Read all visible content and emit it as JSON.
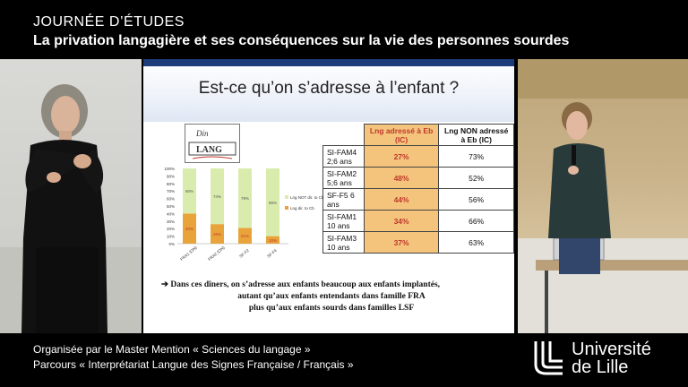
{
  "header": {
    "event_title": "JOURNÉE D’ÉTUDES",
    "event_subtitle": "La privation langagière et ses conséquences sur la vie des personnes sourdes"
  },
  "slide": {
    "title": "Est-ce qu’on s’adresse à l’enfant ?",
    "logo_text": "Din LANG",
    "table": {
      "headers": [
        "Lng adressé à Eb (IC)",
        "Lng NON adressé à Eb (IC)"
      ],
      "rows": [
        {
          "label": "SI-FAM4 2;6 ans",
          "adressed": "27%",
          "not_adressed": "73%"
        },
        {
          "label": "SI-FAM2 5;6 ans",
          "adressed": "48%",
          "not_adressed": "52%"
        },
        {
          "label": "SF-F5 6 ans",
          "adressed": "44%",
          "not_adressed": "56%"
        },
        {
          "label": "SI-FAM1 10 ans",
          "adressed": "34%",
          "not_adressed": "66%"
        },
        {
          "label": "SI-FAM3 10 ans",
          "adressed": "37%",
          "not_adressed": "63%"
        }
      ]
    },
    "conclusion": {
      "line1": "Dans ces dîners, on s’adresse aux enfants beaucoup aux enfants implantés,",
      "line2": "autant qu’aux enfants entendants dans famille FRA",
      "line3": "plus qu’aux enfants sourds dans familles LSF"
    }
  },
  "chart_data": {
    "type": "bar",
    "stacked": true,
    "categories": [
      "FRA1 (ON)",
      "FRA2 (ON)",
      "SF-F2",
      "SF-F4"
    ],
    "series": [
      {
        "name": "Lng dir. to Cb",
        "values": [
          40,
          26,
          21,
          10
        ],
        "color": "#e8a33a"
      },
      {
        "name": "Lng NOT dir. to Cb",
        "values": [
          60,
          74,
          79,
          90
        ],
        "color": "#d9ecae"
      }
    ],
    "data_labels": {
      "Lng dir. to Cb": [
        "40%",
        "26%",
        "21%",
        "10%"
      ],
      "Lng NOT dir. to Cb": [
        "60%",
        "74%",
        "79%",
        "90%"
      ]
    },
    "y_ticks": [
      "0%",
      "10%",
      "20%",
      "30%",
      "40%",
      "50%",
      "60%",
      "70%",
      "80%",
      "90%",
      "100%"
    ],
    "ylim": [
      0,
      100
    ],
    "legend_position": "right"
  },
  "footer": {
    "line1": "Organisée par le Master Mention « Sciences du langage »",
    "line2": "Parcours « Interprétariat Langue des Signes Française / Français »",
    "university_line1": "Université",
    "university_line2": "de Lille"
  }
}
